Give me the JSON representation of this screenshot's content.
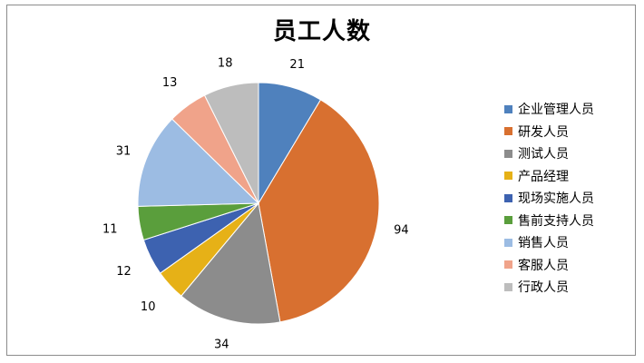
{
  "chart_data": {
    "type": "pie",
    "title": "员工人数",
    "legend_position": "right",
    "start_angle": "top",
    "direction": "clockwise",
    "categories": [
      "企业管理人员",
      "研发人员",
      "测试人员",
      "产品经理",
      "现场实施人员",
      "售前支持人员",
      "销售人员",
      "客服人员",
      "行政人员"
    ],
    "values": [
      21,
      94,
      34,
      10,
      12,
      11,
      31,
      13,
      18
    ],
    "colors": [
      "#4F81BD",
      "#D87030",
      "#8C8C8C",
      "#E6B117",
      "#3D62B0",
      "#5A9E3C",
      "#9CBCE3",
      "#F0A38A",
      "#BDBDBD"
    ]
  }
}
